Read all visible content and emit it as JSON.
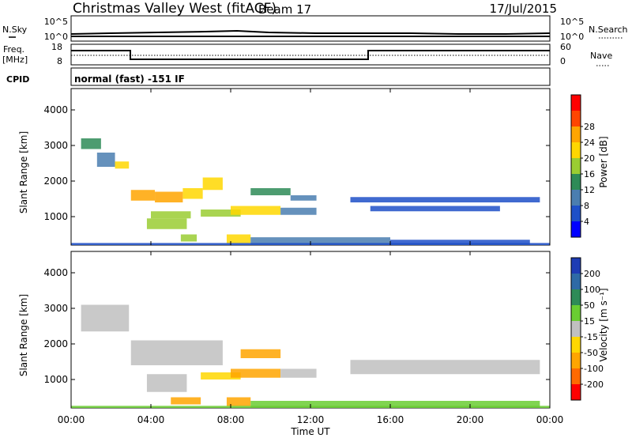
{
  "header": {
    "title": "Christmas Valley West (fitACF)",
    "beam": "Beam 17",
    "date": "17/Jul/2015"
  },
  "nsky_panel": {
    "left_label": "N.Sky",
    "right_label": "N.Search",
    "y_ticks": [
      "10^5",
      "10^0"
    ]
  },
  "freq_panel": {
    "left_label_line1": "Freq.",
    "left_label_line2": "[MHz]",
    "right_label": "Nave",
    "left_ticks": [
      "18",
      "8"
    ],
    "right_ticks": [
      "60",
      "0"
    ]
  },
  "cpid_panel": {
    "label": "CPID",
    "text": "normal (fast) -151 IF"
  },
  "chart_data": [
    {
      "type": "heatmap",
      "name": "Power",
      "ylabel": "Slant Range [km]",
      "ylim": [
        200,
        4600
      ],
      "yticks": [
        "1000",
        "2000",
        "3000",
        "4000"
      ],
      "xlim": [
        0,
        24
      ],
      "colorbar": {
        "label": "Power [dB]",
        "ticks": [
          "4",
          "8",
          "12",
          "16",
          "20",
          "24",
          "28"
        ],
        "colors": [
          "#0000ff",
          "#1e50c8",
          "#4a7eb0",
          "#2e8b57",
          "#9acd32",
          "#ffd700",
          "#ffa500",
          "#ff4500",
          "#ff0000"
        ]
      },
      "regions": [
        {
          "x0": 0.5,
          "x1": 1.5,
          "y0": 2900,
          "y1": 3200,
          "v": 12
        },
        {
          "x0": 1.3,
          "x1": 2.2,
          "y0": 2400,
          "y1": 2800,
          "v": 10
        },
        {
          "x0": 2.2,
          "x1": 2.9,
          "y0": 2350,
          "y1": 2550,
          "v": 20
        },
        {
          "x0": 3.0,
          "x1": 4.2,
          "y0": 1450,
          "y1": 1750,
          "v": 24
        },
        {
          "x0": 4.2,
          "x1": 5.6,
          "y0": 1400,
          "y1": 1700,
          "v": 27
        },
        {
          "x0": 5.6,
          "x1": 6.6,
          "y0": 1500,
          "y1": 1800,
          "v": 22
        },
        {
          "x0": 6.6,
          "x1": 7.6,
          "y0": 1750,
          "y1": 2100,
          "v": 20
        },
        {
          "x0": 3.8,
          "x1": 5.8,
          "y0": 650,
          "y1": 950,
          "v": 18
        },
        {
          "x0": 4.0,
          "x1": 6.0,
          "y0": 950,
          "y1": 1150,
          "v": 16
        },
        {
          "x0": 5.5,
          "x1": 6.3,
          "y0": 300,
          "y1": 500,
          "v": 16
        },
        {
          "x0": 6.5,
          "x1": 8.5,
          "y0": 1000,
          "y1": 1200,
          "v": 18
        },
        {
          "x0": 8.0,
          "x1": 10.5,
          "y0": 1050,
          "y1": 1300,
          "v": 20
        },
        {
          "x0": 10.5,
          "x1": 12.3,
          "y0": 1050,
          "y1": 1250,
          "v": 9
        },
        {
          "x0": 9.0,
          "x1": 11.0,
          "y0": 1600,
          "y1": 1800,
          "v": 15
        },
        {
          "x0": 11.0,
          "x1": 12.3,
          "y0": 1450,
          "y1": 1600,
          "v": 8
        },
        {
          "x0": 7.8,
          "x1": 9.0,
          "y0": 250,
          "y1": 500,
          "v": 20
        },
        {
          "x0": 9.0,
          "x1": 16.0,
          "y0": 220,
          "y1": 420,
          "v": 10
        },
        {
          "x0": 14.0,
          "x1": 23.5,
          "y0": 1400,
          "y1": 1550,
          "v": 6
        },
        {
          "x0": 15.0,
          "x1": 21.5,
          "y0": 1150,
          "y1": 1300,
          "v": 7
        },
        {
          "x0": 16.0,
          "x1": 23.0,
          "y0": 220,
          "y1": 350,
          "v": 6
        },
        {
          "x0": 0.0,
          "x1": 24.0,
          "y0": 200,
          "y1": 260,
          "v": 5
        }
      ]
    },
    {
      "type": "heatmap",
      "name": "Velocity",
      "ylabel": "Slant Range [km]",
      "xlabel": "Time UT",
      "ylim": [
        200,
        4600
      ],
      "yticks": [
        "1000",
        "2000",
        "3000",
        "4000"
      ],
      "xlim": [
        0,
        24
      ],
      "xticks": [
        "00:00",
        "04:00",
        "08:00",
        "12:00",
        "16:00",
        "20:00",
        "00:00"
      ],
      "colorbar": {
        "label": "Velocity [m s⁻¹]",
        "ticks": [
          "200",
          "100",
          "50",
          "15",
          "-15",
          "-50",
          "-100",
          "-200"
        ],
        "colors": [
          "#1e3cb4",
          "#2e6aa6",
          "#2e8b57",
          "#6acd32",
          "#c0c0c0",
          "#ffd700",
          "#ffa500",
          "#ff6a00",
          "#ff0000"
        ]
      },
      "regions": [
        {
          "x0": 0.5,
          "x1": 2.9,
          "y0": 2350,
          "y1": 3100,
          "v": 0
        },
        {
          "x0": 3.0,
          "x1": 7.6,
          "y0": 1400,
          "y1": 2100,
          "v": 0
        },
        {
          "x0": 3.8,
          "x1": 5.8,
          "y0": 650,
          "y1": 1150,
          "v": 0
        },
        {
          "x0": 5.0,
          "x1": 6.5,
          "y0": 300,
          "y1": 500,
          "v": -60
        },
        {
          "x0": 6.5,
          "x1": 8.5,
          "y0": 1000,
          "y1": 1200,
          "v": -40
        },
        {
          "x0": 8.0,
          "x1": 10.5,
          "y0": 1050,
          "y1": 1300,
          "v": -60
        },
        {
          "x0": 8.5,
          "x1": 10.5,
          "y0": 1600,
          "y1": 1850,
          "v": -90
        },
        {
          "x0": 10.5,
          "x1": 12.3,
          "y0": 1050,
          "y1": 1300,
          "v": 0
        },
        {
          "x0": 7.8,
          "x1": 9.0,
          "y0": 250,
          "y1": 500,
          "v": -80
        },
        {
          "x0": 9.0,
          "x1": 23.5,
          "y0": 220,
          "y1": 400,
          "v": 30
        },
        {
          "x0": 14.0,
          "x1": 23.5,
          "y0": 1150,
          "y1": 1550,
          "v": 0
        },
        {
          "x0": 0.0,
          "x1": 24.0,
          "y0": 200,
          "y1": 260,
          "v": 25
        }
      ]
    }
  ]
}
